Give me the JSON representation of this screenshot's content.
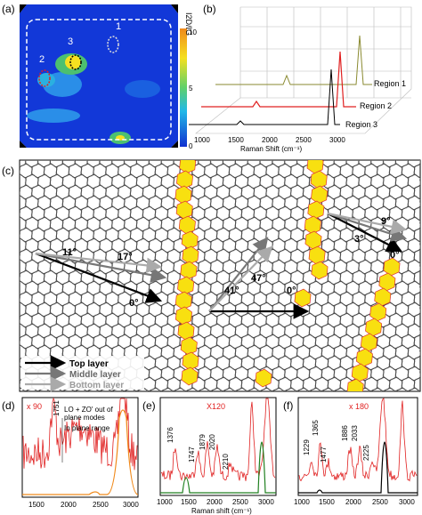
{
  "panel_a": {
    "label": "(a)",
    "colorbar_label": "I2D/IG",
    "colorbar_ticks": [
      "10",
      "5",
      "0"
    ],
    "regions": [
      "1",
      "2",
      "3"
    ]
  },
  "panel_b": {
    "label": "(b)",
    "series": [
      "Region 1",
      "Region 2",
      "Region 3"
    ],
    "x_ticks": [
      "1000",
      "1500",
      "2000",
      "2500",
      "3000"
    ],
    "x_label": "Raman Shift (cm⁻¹)"
  },
  "panel_c": {
    "label": "(c)",
    "angles": [
      "11°",
      "17°",
      "0°",
      "41°",
      "47°",
      "0°",
      "9°",
      "3°",
      "0°"
    ],
    "legend": [
      "Top layer",
      "Middle layer",
      "Bottom layer"
    ]
  },
  "panel_d": {
    "label": "(d)",
    "scale": "x 90",
    "peak": "1751",
    "annotation_lines": [
      "LO + ZO' out of",
      "plane modes",
      "In plane range"
    ],
    "x_ticks": [
      "1500",
      "2000",
      "2500",
      "3000"
    ]
  },
  "panel_e": {
    "label": "(e)",
    "scale": "X120",
    "peaks": [
      "1376",
      "1747",
      "1879",
      "2020",
      "2210"
    ],
    "x_ticks": [
      "1000",
      "1500",
      "2000",
      "2500",
      "3000"
    ],
    "x_label": "Raman shift (cm⁻¹)"
  },
  "panel_f": {
    "label": "(f)",
    "scale": "x 180",
    "peaks": [
      "1229",
      "1365",
      "1477",
      "1886",
      "2033",
      "2225"
    ],
    "x_ticks": [
      "1000",
      "1500",
      "2000",
      "2500",
      "3000"
    ]
  }
}
